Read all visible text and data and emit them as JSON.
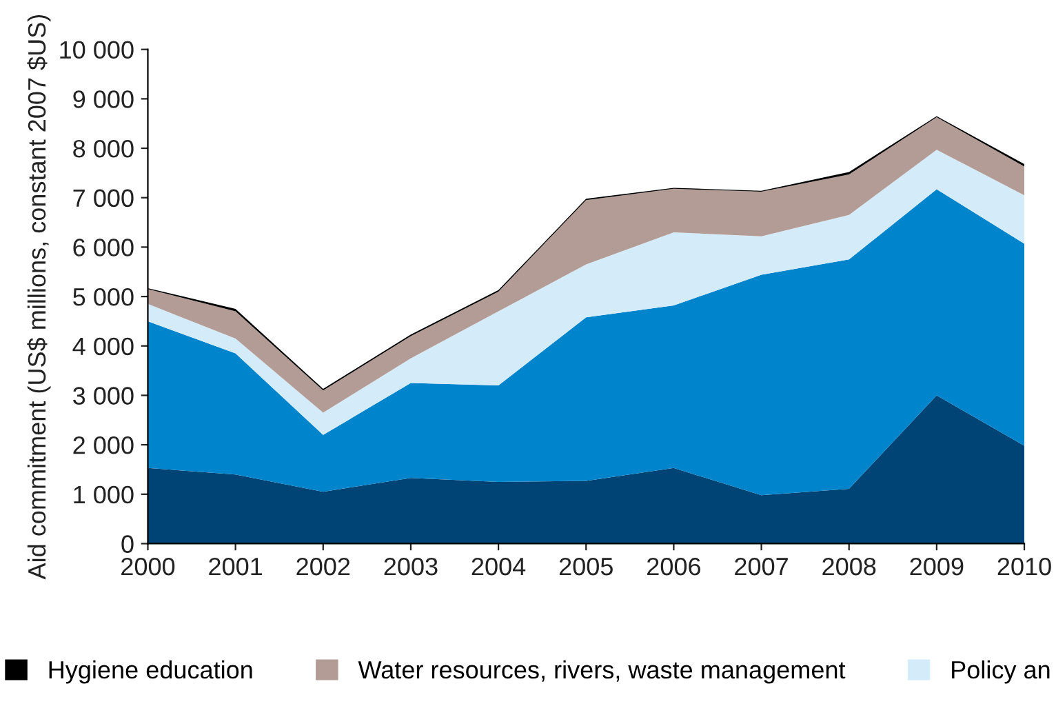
{
  "chart_data": {
    "type": "area",
    "stacked": true,
    "ylabel": "Aid commitment (US$ millions, constant 2007 $US)",
    "x": [
      2000,
      2001,
      2002,
      2003,
      2004,
      2005,
      2006,
      2007,
      2008,
      2009,
      2010
    ],
    "xlim": [
      2000,
      2010
    ],
    "xticks": [
      2000,
      2001,
      2002,
      2003,
      2004,
      2005,
      2006,
      2007,
      2008,
      2009,
      2010
    ],
    "ylim": [
      0,
      10000
    ],
    "yticks": [
      0,
      {
        "value": 1000,
        "label": "1 000"
      },
      {
        "value": 2000,
        "label": "2 000"
      },
      {
        "value": 3000,
        "label": "3 000"
      },
      {
        "value": 4000,
        "label": "4 000"
      },
      {
        "value": 5000,
        "label": "5 000"
      },
      {
        "value": 6000,
        "label": "6 000"
      },
      {
        "value": 7000,
        "label": "7 000"
      },
      {
        "value": 8000,
        "label": "8 000"
      },
      {
        "value": 9000,
        "label": "9 000"
      },
      {
        "value": 10000,
        "label": "10 000"
      }
    ],
    "grid": false,
    "legend": "bottom",
    "series": [
      {
        "color": "#004475",
        "values": [
          1530,
          1400,
          1050,
          1330,
          1250,
          1270,
          1530,
          980,
          1110,
          3000,
          1980
        ]
      },
      {
        "color": "#0085cc",
        "values": [
          2970,
          2450,
          1150,
          1920,
          1950,
          3310,
          3290,
          4460,
          4640,
          4170,
          4090
        ]
      },
      {
        "name": "Policy an",
        "color": "#d4ebf9",
        "values": [
          350,
          300,
          450,
          500,
          1500,
          1070,
          1480,
          780,
          900,
          800,
          980
        ]
      },
      {
        "name": "Water resources, rivers, waste management",
        "color": "#b39c95",
        "values": [
          300,
          550,
          450,
          450,
          400,
          1300,
          880,
          900,
          820,
          660,
          580
        ]
      },
      {
        "name": "Hygiene education",
        "color": "#000000",
        "values": [
          20,
          50,
          30,
          30,
          30,
          30,
          20,
          20,
          50,
          20,
          50
        ]
      }
    ]
  }
}
